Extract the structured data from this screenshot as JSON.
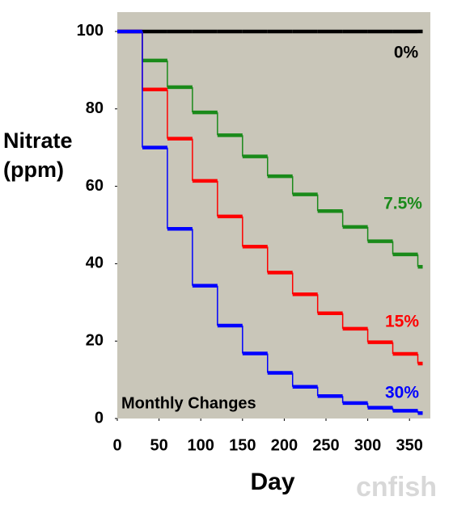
{
  "chart_data": {
    "type": "step",
    "annotation": "Monthly Changes",
    "x_label": "Day",
    "y_label": "Nitrate (ppm)",
    "watermark": "cnfish",
    "x": [
      0,
      30,
      60,
      90,
      120,
      150,
      180,
      210,
      240,
      270,
      300,
      330,
      360
    ],
    "series": [
      {
        "name": "0%",
        "color": "#000000",
        "values": [
          100,
          100,
          100,
          100,
          100,
          100,
          100,
          100,
          100,
          100,
          100,
          100,
          100
        ]
      },
      {
        "name": "7.5%",
        "color": "#1a8a1a",
        "values": [
          100,
          92.5,
          85.6,
          79.1,
          73.2,
          67.7,
          62.6,
          57.9,
          53.6,
          49.5,
          45.8,
          42.4,
          39.2
        ]
      },
      {
        "name": "15%",
        "color": "#ff0000",
        "values": [
          100,
          85,
          72.3,
          61.4,
          52.2,
          44.4,
          37.7,
          32.1,
          27.2,
          23.2,
          19.7,
          16.7,
          14.2
        ]
      },
      {
        "name": "30%",
        "color": "#0000ff",
        "values": [
          100,
          70,
          49,
          34.3,
          24,
          16.8,
          11.8,
          8.2,
          5.8,
          4,
          2.8,
          2,
          1.4
        ]
      }
    ],
    "xlim": [
      0,
      375
    ],
    "ylim": [
      0,
      105
    ],
    "xticks": [
      0,
      50,
      100,
      150,
      200,
      250,
      300,
      350
    ],
    "yticks": [
      0,
      20,
      40,
      60,
      80,
      100
    ]
  }
}
